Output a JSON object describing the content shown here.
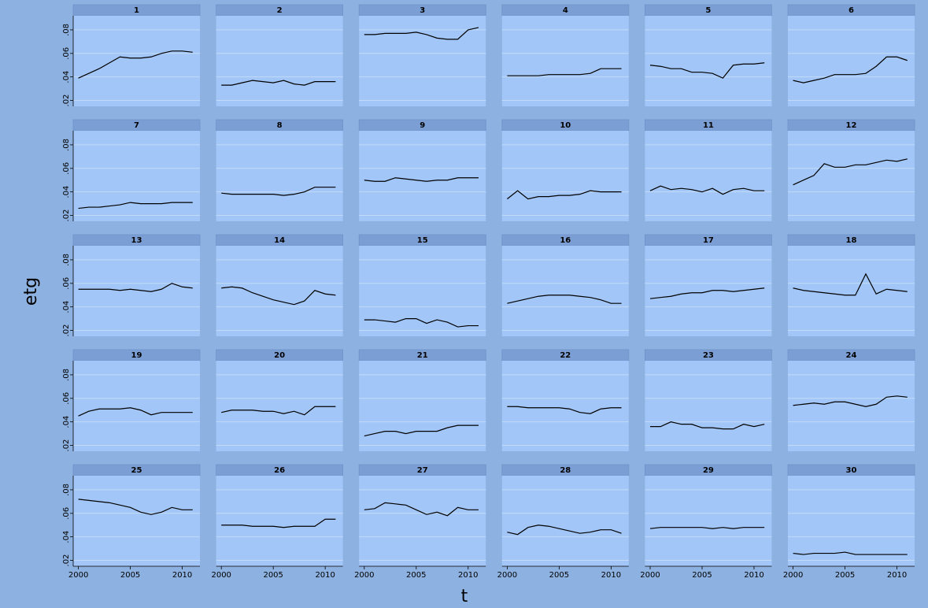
{
  "chart_data": {
    "type": "line",
    "xlabel": "t",
    "ylabel": "etg",
    "x": [
      2000,
      2001,
      2002,
      2003,
      2004,
      2005,
      2006,
      2007,
      2008,
      2009,
      2010,
      2011
    ],
    "xlim": [
      1999.5,
      2011.7
    ],
    "xticks": [
      2000,
      2005,
      2010
    ],
    "ylim": [
      0.015,
      0.092
    ],
    "yticks": [
      {
        "value": 0.02,
        "label": ".02"
      },
      {
        "value": 0.04,
        "label": ".04"
      },
      {
        "value": 0.06,
        "label": ".06"
      },
      {
        "value": 0.08,
        "label": ".08"
      }
    ],
    "grid": true,
    "color": "#000000",
    "panels": [
      {
        "title": "1",
        "values": [
          0.039,
          0.043,
          0.047,
          0.052,
          0.057,
          0.056,
          0.056,
          0.057,
          0.06,
          0.062,
          0.062,
          0.061
        ]
      },
      {
        "title": "2",
        "values": [
          0.033,
          0.033,
          0.035,
          0.037,
          0.036,
          0.035,
          0.037,
          0.034,
          0.033,
          0.036,
          0.036,
          0.036
        ]
      },
      {
        "title": "3",
        "values": [
          0.076,
          0.076,
          0.077,
          0.077,
          0.077,
          0.078,
          0.076,
          0.073,
          0.072,
          0.072,
          0.08,
          0.082
        ]
      },
      {
        "title": "4",
        "values": [
          0.041,
          0.041,
          0.041,
          0.041,
          0.042,
          0.042,
          0.042,
          0.042,
          0.043,
          0.047,
          0.047,
          0.047
        ]
      },
      {
        "title": "5",
        "values": [
          0.05,
          0.049,
          0.047,
          0.047,
          0.044,
          0.044,
          0.043,
          0.039,
          0.05,
          0.051,
          0.051,
          0.052
        ]
      },
      {
        "title": "6",
        "values": [
          0.037,
          0.035,
          0.037,
          0.039,
          0.042,
          0.042,
          0.042,
          0.043,
          0.049,
          0.057,
          0.057,
          0.054
        ]
      },
      {
        "title": "7",
        "values": [
          0.026,
          0.027,
          0.027,
          0.028,
          0.029,
          0.031,
          0.03,
          0.03,
          0.03,
          0.031,
          0.031,
          0.031
        ]
      },
      {
        "title": "8",
        "values": [
          0.039,
          0.038,
          0.038,
          0.038,
          0.038,
          0.038,
          0.037,
          0.038,
          0.04,
          0.044,
          0.044,
          0.044
        ]
      },
      {
        "title": "9",
        "values": [
          0.05,
          0.049,
          0.049,
          0.052,
          0.051,
          0.05,
          0.049,
          0.05,
          0.05,
          0.052,
          0.052,
          0.052
        ]
      },
      {
        "title": "10",
        "values": [
          0.034,
          0.041,
          0.034,
          0.036,
          0.036,
          0.037,
          0.037,
          0.038,
          0.041,
          0.04,
          0.04,
          0.04
        ]
      },
      {
        "title": "11",
        "values": [
          0.041,
          0.045,
          0.042,
          0.043,
          0.042,
          0.04,
          0.043,
          0.038,
          0.042,
          0.043,
          0.041,
          0.041
        ]
      },
      {
        "title": "12",
        "values": [
          0.046,
          0.05,
          0.054,
          0.064,
          0.061,
          0.061,
          0.063,
          0.063,
          0.065,
          0.067,
          0.066,
          0.068
        ]
      },
      {
        "title": "13",
        "values": [
          0.055,
          0.055,
          0.055,
          0.055,
          0.054,
          0.055,
          0.054,
          0.053,
          0.055,
          0.06,
          0.057,
          0.056
        ]
      },
      {
        "title": "14",
        "values": [
          0.056,
          0.057,
          0.056,
          0.052,
          0.049,
          0.046,
          0.044,
          0.042,
          0.045,
          0.054,
          0.051,
          0.05
        ]
      },
      {
        "title": "15",
        "values": [
          0.029,
          0.029,
          0.028,
          0.027,
          0.03,
          0.03,
          0.026,
          0.029,
          0.027,
          0.023,
          0.024,
          0.024
        ]
      },
      {
        "title": "16",
        "values": [
          0.043,
          0.045,
          0.047,
          0.049,
          0.05,
          0.05,
          0.05,
          0.049,
          0.048,
          0.046,
          0.043,
          0.043
        ]
      },
      {
        "title": "17",
        "values": [
          0.047,
          0.048,
          0.049,
          0.051,
          0.052,
          0.052,
          0.054,
          0.054,
          0.053,
          0.054,
          0.055,
          0.056
        ]
      },
      {
        "title": "18",
        "values": [
          0.056,
          0.054,
          0.053,
          0.052,
          0.051,
          0.05,
          0.05,
          0.068,
          0.051,
          0.055,
          0.054,
          0.053
        ]
      },
      {
        "title": "19",
        "values": [
          0.045,
          0.049,
          0.051,
          0.051,
          0.051,
          0.052,
          0.05,
          0.046,
          0.048,
          0.048,
          0.048,
          0.048
        ]
      },
      {
        "title": "20",
        "values": [
          0.048,
          0.05,
          0.05,
          0.05,
          0.049,
          0.049,
          0.047,
          0.049,
          0.046,
          0.053,
          0.053,
          0.053
        ]
      },
      {
        "title": "21",
        "values": [
          0.028,
          0.03,
          0.032,
          0.032,
          0.03,
          0.032,
          0.032,
          0.032,
          0.035,
          0.037,
          0.037,
          0.037
        ]
      },
      {
        "title": "22",
        "values": [
          0.053,
          0.053,
          0.052,
          0.052,
          0.052,
          0.052,
          0.051,
          0.048,
          0.047,
          0.051,
          0.052,
          0.052
        ]
      },
      {
        "title": "23",
        "values": [
          0.036,
          0.036,
          0.04,
          0.038,
          0.038,
          0.035,
          0.035,
          0.034,
          0.034,
          0.038,
          0.036,
          0.038
        ]
      },
      {
        "title": "24",
        "values": [
          0.054,
          0.055,
          0.056,
          0.055,
          0.057,
          0.057,
          0.055,
          0.053,
          0.055,
          0.061,
          0.062,
          0.061
        ]
      },
      {
        "title": "25",
        "values": [
          0.072,
          0.071,
          0.07,
          0.069,
          0.067,
          0.065,
          0.061,
          0.059,
          0.061,
          0.065,
          0.063,
          0.063
        ]
      },
      {
        "title": "26",
        "values": [
          0.05,
          0.05,
          0.05,
          0.049,
          0.049,
          0.049,
          0.048,
          0.049,
          0.049,
          0.049,
          0.055,
          0.055
        ]
      },
      {
        "title": "27",
        "values": [
          0.063,
          0.064,
          0.069,
          0.068,
          0.067,
          0.063,
          0.059,
          0.061,
          0.058,
          0.065,
          0.063,
          0.063
        ]
      },
      {
        "title": "28",
        "values": [
          0.044,
          0.042,
          0.048,
          0.05,
          0.049,
          0.047,
          0.045,
          0.043,
          0.044,
          0.046,
          0.046,
          0.043
        ]
      },
      {
        "title": "29",
        "values": [
          0.047,
          0.048,
          0.048,
          0.048,
          0.048,
          0.048,
          0.047,
          0.048,
          0.047,
          0.048,
          0.048,
          0.048
        ]
      },
      {
        "title": "30",
        "values": [
          0.026,
          0.025,
          0.026,
          0.026,
          0.026,
          0.027,
          0.025,
          0.025,
          0.025,
          0.025,
          0.025,
          0.025
        ]
      }
    ]
  }
}
